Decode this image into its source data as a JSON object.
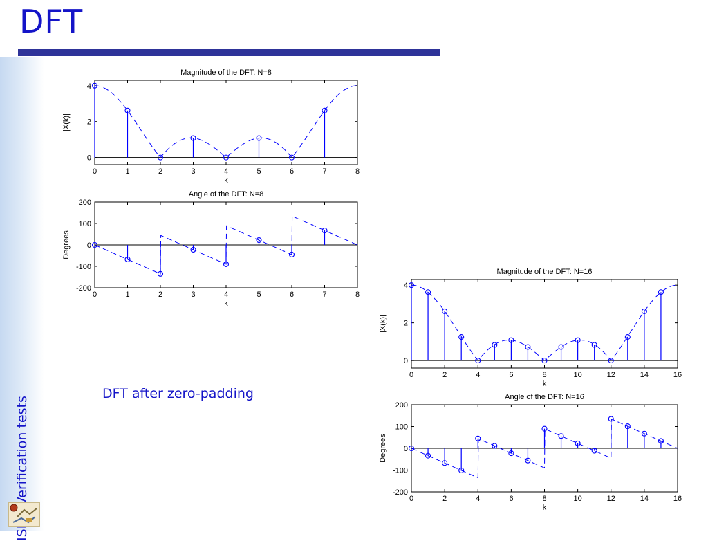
{
  "slide": {
    "title": "DFT",
    "sidebar_text": "ISP – Verification tests",
    "caption": "DFT after zero-padding",
    "colors": {
      "title": "#1414c8",
      "bar": "#2e3399",
      "stem": "#0000ff",
      "axis": "#000000"
    }
  },
  "chart_data": [
    {
      "type": "stem",
      "title": "Magnitude of the DFT: N=8",
      "xlabel": "k",
      "ylabel": "|X(k)|",
      "xlim": [
        0,
        8
      ],
      "ylim": [
        -0.4,
        4.3
      ],
      "xticks": [
        0,
        1,
        2,
        3,
        4,
        5,
        6,
        7,
        8
      ],
      "yticks": [
        0,
        2,
        4
      ],
      "x": [
        0,
        1,
        2,
        3,
        4,
        5,
        6,
        7
      ],
      "values": [
        4,
        2.613,
        0,
        1.082,
        0,
        1.082,
        0,
        2.613
      ],
      "dashed_curve": "magnitude",
      "N": 4,
      "M": 8
    },
    {
      "type": "stem",
      "title": "Angle of the DFT: N=8",
      "xlabel": "k",
      "ylabel": "Degrees",
      "xlim": [
        0,
        8
      ],
      "ylim": [
        -200,
        200
      ],
      "xticks": [
        0,
        1,
        2,
        3,
        4,
        5,
        6,
        7,
        8
      ],
      "yticks": [
        -200,
        -100,
        0,
        100,
        200
      ],
      "x": [
        0,
        1,
        2,
        3,
        4,
        5,
        6,
        7
      ],
      "values": [
        0,
        -67.5,
        -135,
        -22.5,
        -90,
        22.5,
        -45,
        67.5
      ],
      "dashed_curve": "phase",
      "N": 4,
      "M": 8
    },
    {
      "type": "stem",
      "title": "Magnitude of the DFT: N=16",
      "xlabel": "k",
      "ylabel": "|X(k)|",
      "xlim": [
        0,
        16
      ],
      "ylim": [
        -0.4,
        4.3
      ],
      "xticks": [
        0,
        2,
        4,
        6,
        8,
        10,
        12,
        14,
        16
      ],
      "yticks": [
        0,
        2,
        4
      ],
      "x": [
        0,
        1,
        2,
        3,
        4,
        5,
        6,
        7,
        8,
        9,
        10,
        11,
        12,
        13,
        14,
        15
      ],
      "values": [
        4,
        3.63,
        2.613,
        1.25,
        0,
        0.83,
        1.082,
        0.72,
        0,
        0.72,
        1.082,
        0.83,
        0,
        1.25,
        2.613,
        3.63
      ],
      "dashed_curve": "magnitude",
      "N": 4,
      "M": 16
    },
    {
      "type": "stem",
      "title": "Angle of the DFT: N=16",
      "xlabel": "k",
      "ylabel": "Degrees",
      "xlim": [
        0,
        16
      ],
      "ylim": [
        -200,
        200
      ],
      "xticks": [
        0,
        2,
        4,
        6,
        8,
        10,
        12,
        14,
        16
      ],
      "yticks": [
        -200,
        -100,
        0,
        100,
        200
      ],
      "x": [
        0,
        1,
        2,
        3,
        4,
        5,
        6,
        7,
        8,
        9,
        10,
        11,
        12,
        13,
        14,
        15
      ],
      "values": [
        0,
        -33.75,
        -67.5,
        -101.25,
        45,
        11.25,
        -22.5,
        -56.25,
        90,
        56.25,
        22.5,
        -11.25,
        135,
        101.25,
        67.5,
        33.75
      ],
      "dashed_curve": "phase",
      "N": 4,
      "M": 16
    }
  ]
}
